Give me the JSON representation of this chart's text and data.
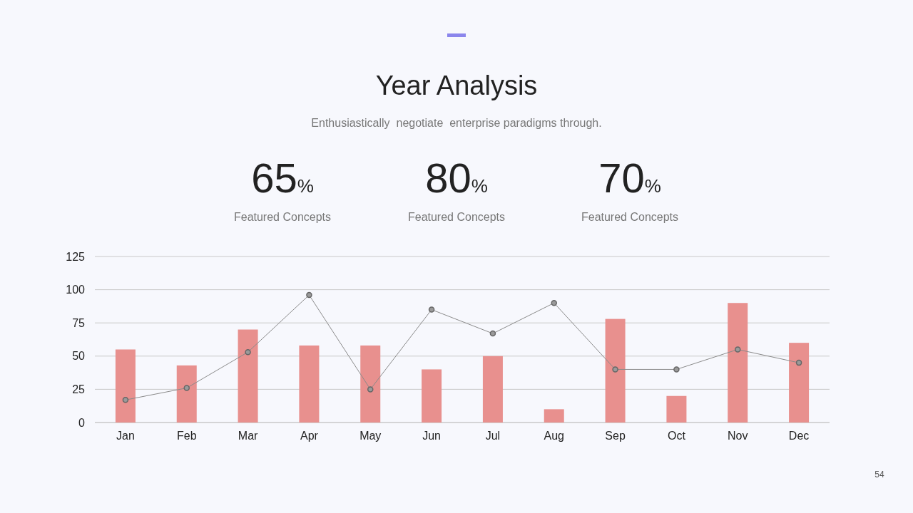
{
  "chart_data": {
    "type": "bar",
    "title": "Year Analysis",
    "subtitle": "Enthusiastically  negotiate  enterprise paradigms through.",
    "annotations": [
      "65%",
      "Featured Concepts",
      "80%",
      "Featured Concepts",
      "70%",
      "Featured Concepts",
      "54"
    ],
    "categories": [
      "Jan",
      "Feb",
      "Mar",
      "Apr",
      "May",
      "Jun",
      "Jul",
      "Aug",
      "Sep",
      "Oct",
      "Nov",
      "Dec"
    ],
    "series": [
      {
        "color": "#e8908e",
        "values": [
          55,
          43,
          70,
          58,
          58,
          40,
          50,
          10,
          78,
          20,
          90,
          60
        ]
      },
      {
        "type": "line",
        "color": "#8a8a8a",
        "values": [
          17,
          26,
          53,
          96,
          25,
          85,
          67,
          90,
          40,
          40,
          55,
          45
        ]
      }
    ],
    "ylim": [
      0,
      125
    ],
    "yticks": [
      0,
      25,
      50,
      75,
      100,
      125
    ],
    "grid": "y",
    "marker": "circle",
    "line_style": "solid"
  }
}
